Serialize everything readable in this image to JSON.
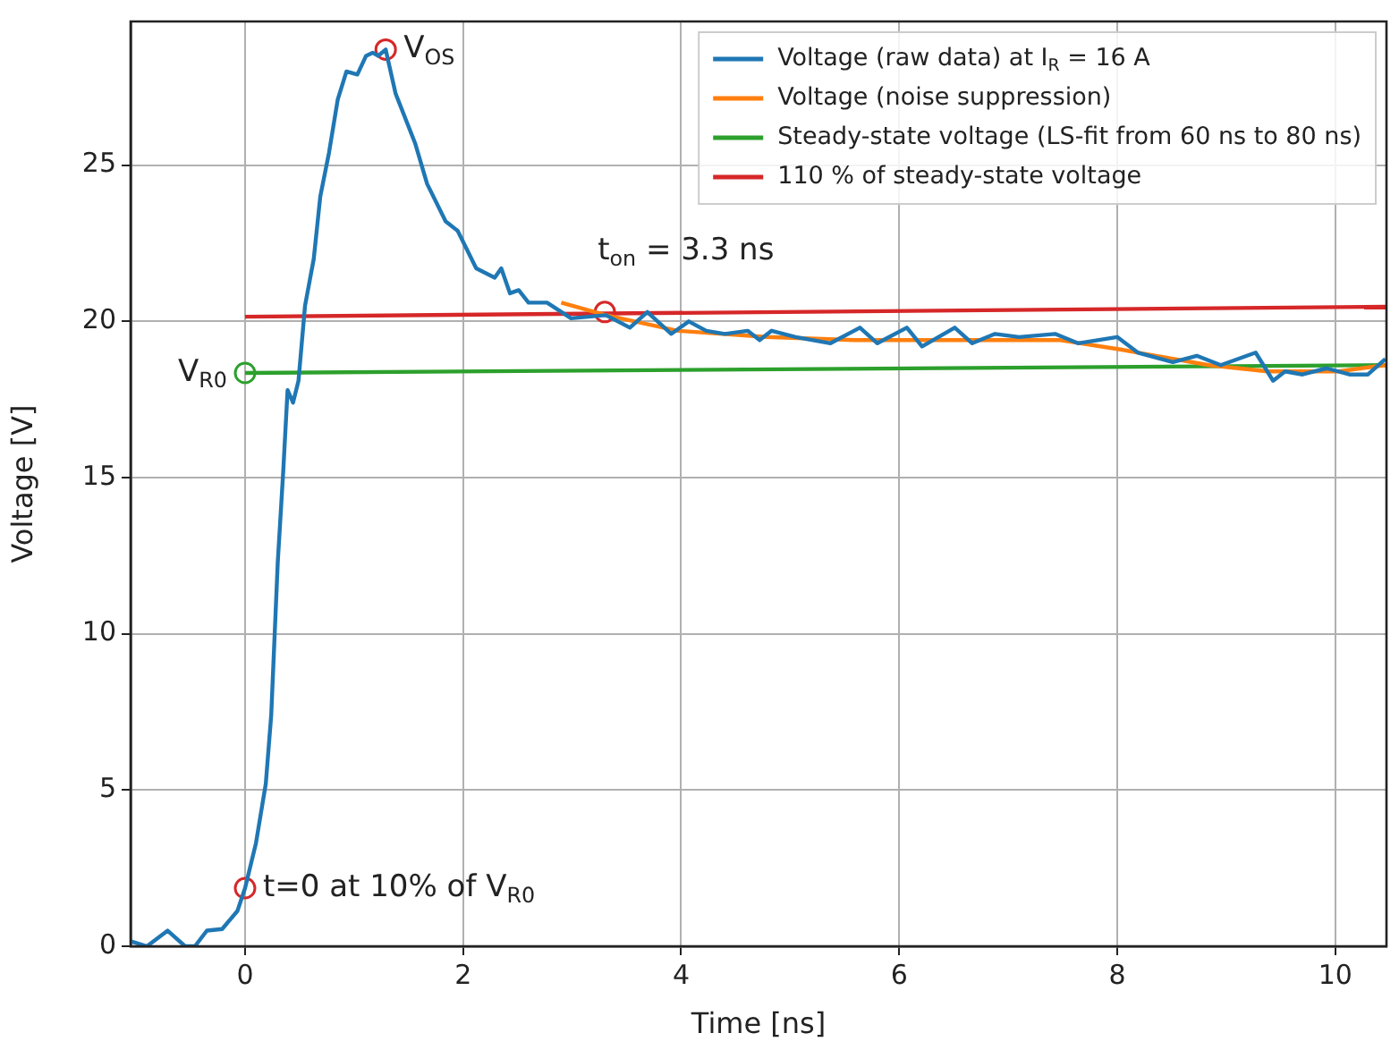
{
  "chart_data": {
    "type": "line",
    "xlabel": "Time [ns]",
    "ylabel": "Voltage [V]",
    "xlim": [
      -1.05,
      10.47
    ],
    "ylim": [
      0,
      29.6
    ],
    "xticks": [
      0,
      2,
      4,
      6,
      8,
      10
    ],
    "yticks": [
      0,
      5,
      10,
      15,
      20,
      25
    ],
    "grid": true,
    "legend": "top right",
    "marker": "none",
    "line_style": "solid",
    "series": [
      {
        "name": "Voltage (raw data) at I$_{R}$ = 16 A",
        "color": "#1f77b4",
        "x": [
          -1.05,
          -0.9,
          -0.71,
          -0.55,
          -0.46,
          -0.35,
          -0.21,
          -0.07,
          0,
          0.1,
          0.19,
          0.24,
          0.3,
          0.35,
          0.39,
          0.44,
          0.49,
          0.55,
          0.63,
          0.69,
          0.77,
          0.85,
          0.93,
          1.03,
          1.11,
          1.17,
          1.22,
          1.29,
          1.38,
          1.56,
          1.67,
          1.84,
          1.95,
          2.12,
          2.29,
          2.35,
          2.43,
          2.51,
          2.6,
          2.77,
          2.99,
          3.31,
          3.53,
          3.69,
          3.91,
          4.07,
          4.23,
          4.4,
          4.61,
          4.72,
          4.83,
          5.05,
          5.37,
          5.64,
          5.8,
          6.07,
          6.21,
          6.51,
          6.67,
          6.88,
          7.1,
          7.43,
          7.64,
          8.0,
          8.19,
          8.51,
          8.73,
          8.95,
          9.27,
          9.43,
          9.54,
          9.7,
          9.92,
          10.13,
          10.3,
          10.46
        ],
        "values": [
          0.16,
          0,
          0.5,
          0,
          0,
          0.5,
          0.55,
          1.13,
          1.86,
          3.3,
          5.2,
          7.4,
          12.3,
          15.2,
          17.8,
          17.4,
          18.1,
          20.5,
          22.0,
          24.0,
          25.4,
          27.1,
          28.0,
          27.9,
          28.5,
          28.6,
          28.5,
          28.7,
          27.3,
          25.7,
          24.4,
          23.2,
          22.9,
          21.7,
          21.4,
          21.7,
          20.9,
          21.0,
          20.6,
          20.6,
          20.1,
          20.2,
          19.8,
          20.3,
          19.6,
          20.0,
          19.7,
          19.6,
          19.7,
          19.4,
          19.7,
          19.5,
          19.3,
          19.8,
          19.3,
          19.8,
          19.2,
          19.8,
          19.3,
          19.6,
          19.5,
          19.6,
          19.3,
          19.5,
          19.0,
          18.7,
          18.9,
          18.6,
          19.0,
          18.1,
          18.4,
          18.3,
          18.5,
          18.3,
          18.3,
          18.8
        ]
      },
      {
        "name": "Voltage (noise suppression)",
        "color": "#ff7f0e",
        "x": [
          2.9,
          3.31,
          3.97,
          4.78,
          5.59,
          6.67,
          7.48,
          8.03,
          8.84,
          9.38,
          10.03,
          10.46
        ],
        "values": [
          20.6,
          20.2,
          19.7,
          19.5,
          19.4,
          19.4,
          19.4,
          19.1,
          18.6,
          18.4,
          18.4,
          18.6
        ]
      },
      {
        "name": "Steady-state voltage (LS-fit from 60 ns to 80 ns)",
        "color": "#2ca02c",
        "x": [
          0,
          10.47
        ],
        "values": [
          18.35,
          18.6
        ]
      },
      {
        "name": "110 % of steady-state voltage",
        "color": "#d62728",
        "x": [
          0,
          10.47
        ],
        "values": [
          20.15,
          20.47
        ]
      },
      {
        "type": "scatter",
        "marker": "circle",
        "color": "#d62728",
        "x": [
          0,
          1.29,
          3.3
        ],
        "values": [
          1.86,
          28.7,
          20.3
        ]
      },
      {
        "type": "scatter",
        "marker": "circle",
        "color": "#2ca02c",
        "x": [
          0
        ],
        "values": [
          18.35
        ]
      }
    ],
    "annotations": [
      {
        "text": "V$_{OS}$",
        "x": 1.29,
        "y": 28.7
      },
      {
        "text": "V$_{R0}$",
        "x": 0,
        "y": 18.35
      },
      {
        "text": "t=0 at 10% of V$_{R0}$",
        "x": 0,
        "y": 1.86
      },
      {
        "text": "t$_{on}$ = 3.3 ns",
        "x": 3.3,
        "y": 20.3
      }
    ]
  }
}
